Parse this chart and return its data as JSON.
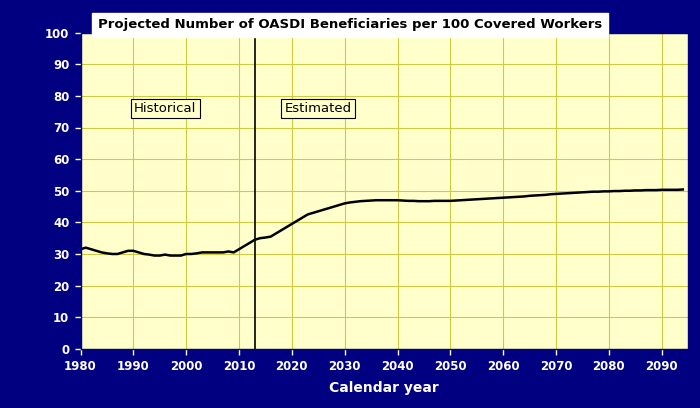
{
  "title": "Projected Number of OASDI Beneficiaries per 100 Covered Workers",
  "xlabel": "Calendar year",
  "xlim": [
    1980,
    2095
  ],
  "ylim": [
    0,
    100
  ],
  "yticks": [
    0,
    10,
    20,
    30,
    40,
    50,
    60,
    70,
    80,
    90,
    100
  ],
  "xticks": [
    1980,
    1990,
    2000,
    2010,
    2020,
    2030,
    2040,
    2050,
    2060,
    2070,
    2080,
    2090
  ],
  "background_color": "#FFFFCC",
  "outer_background": "#000080",
  "line_color": "#000000",
  "grid_color": "#CCCC44",
  "title_color": "#000000",
  "tick_label_color": "#FFFFFF",
  "xlabel_color": "#FFFFFF",
  "historical_label": "Historical",
  "estimated_label": "Estimated",
  "divider_x": 2013,
  "years": [
    1980,
    1981,
    1982,
    1983,
    1984,
    1985,
    1986,
    1987,
    1988,
    1989,
    1990,
    1991,
    1992,
    1993,
    1994,
    1995,
    1996,
    1997,
    1998,
    1999,
    2000,
    2001,
    2002,
    2003,
    2004,
    2005,
    2006,
    2007,
    2008,
    2009,
    2010,
    2011,
    2012,
    2013,
    2014,
    2015,
    2016,
    2017,
    2018,
    2019,
    2020,
    2021,
    2022,
    2023,
    2024,
    2025,
    2026,
    2027,
    2028,
    2029,
    2030,
    2031,
    2032,
    2033,
    2034,
    2035,
    2036,
    2037,
    2038,
    2039,
    2040,
    2041,
    2042,
    2043,
    2044,
    2045,
    2046,
    2047,
    2048,
    2049,
    2050,
    2051,
    2052,
    2053,
    2054,
    2055,
    2056,
    2057,
    2058,
    2059,
    2060,
    2061,
    2062,
    2063,
    2064,
    2065,
    2066,
    2067,
    2068,
    2069,
    2070,
    2071,
    2072,
    2073,
    2074,
    2075,
    2076,
    2077,
    2078,
    2079,
    2080,
    2081,
    2082,
    2083,
    2084,
    2085,
    2086,
    2087,
    2088,
    2089,
    2090,
    2091,
    2092,
    2093,
    2094
  ],
  "values": [
    31.5,
    32.0,
    31.5,
    31.0,
    30.5,
    30.2,
    30.0,
    30.0,
    30.5,
    31.0,
    31.0,
    30.5,
    30.0,
    29.8,
    29.5,
    29.5,
    29.8,
    29.5,
    29.5,
    29.5,
    30.0,
    30.0,
    30.2,
    30.5,
    30.5,
    30.5,
    30.5,
    30.5,
    30.8,
    30.5,
    31.5,
    32.5,
    33.5,
    34.5,
    35.0,
    35.2,
    35.5,
    36.5,
    37.5,
    38.5,
    39.5,
    40.5,
    41.5,
    42.5,
    43.0,
    43.5,
    44.0,
    44.5,
    45.0,
    45.5,
    46.0,
    46.3,
    46.5,
    46.7,
    46.8,
    46.9,
    47.0,
    47.0,
    47.0,
    47.0,
    47.0,
    46.9,
    46.8,
    46.8,
    46.7,
    46.7,
    46.7,
    46.8,
    46.8,
    46.8,
    46.8,
    46.9,
    47.0,
    47.1,
    47.2,
    47.3,
    47.4,
    47.5,
    47.6,
    47.7,
    47.8,
    47.9,
    48.0,
    48.1,
    48.2,
    48.4,
    48.5,
    48.6,
    48.7,
    48.9,
    49.0,
    49.1,
    49.2,
    49.3,
    49.4,
    49.5,
    49.6,
    49.7,
    49.7,
    49.8,
    49.8,
    49.9,
    49.9,
    50.0,
    50.0,
    50.1,
    50.1,
    50.2,
    50.2,
    50.2,
    50.3,
    50.3,
    50.3,
    50.3,
    50.4
  ]
}
